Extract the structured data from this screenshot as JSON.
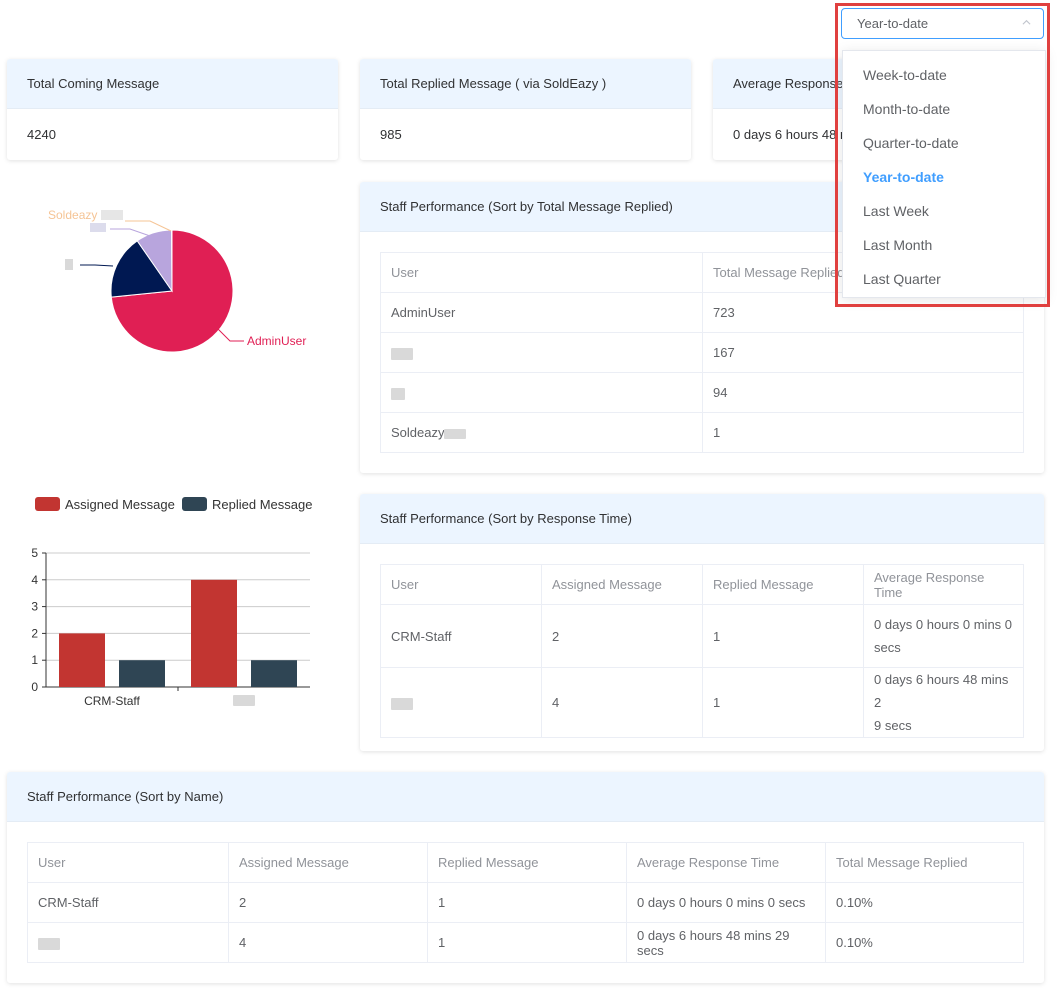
{
  "filter": {
    "selected": "Year-to-date",
    "options": [
      "Week-to-date",
      "Month-to-date",
      "Quarter-to-date",
      "Year-to-date",
      "Last Week",
      "Last Month",
      "Last Quarter"
    ]
  },
  "stats": [
    {
      "label": "Total Coming Message",
      "value": "4240"
    },
    {
      "label": "Total Replied Message ( via SoldEazy )",
      "value": "985"
    },
    {
      "label": "Average Response Time",
      "value": "0 days 6 hours 48 mins"
    }
  ],
  "pie": {
    "labels": {
      "soldeazy": "Soldeazy",
      "admin": "AdminUser"
    },
    "colors": {
      "admin": "#e01f54",
      "navy": "#001852",
      "lilac": "#b8a5dd",
      "soldeazy": "#f5c495"
    }
  },
  "chart_data": [
    {
      "type": "pie",
      "slices": [
        {
          "name": "AdminUser",
          "value": 723
        },
        {
          "name": "",
          "value": 167
        },
        {
          "name": "",
          "value": 94
        },
        {
          "name": "Soldeazy",
          "value": 1
        }
      ]
    },
    {
      "type": "bar",
      "categories": [
        "CRM-Staff",
        ""
      ],
      "series": [
        {
          "name": "Assigned Message",
          "values": [
            2,
            4
          ],
          "color": "#c23531"
        },
        {
          "name": "Replied Message",
          "values": [
            1,
            1
          ],
          "color": "#2f4554"
        }
      ],
      "ylim": [
        0,
        5
      ],
      "yticks": [
        "0",
        "1",
        "2",
        "3",
        "4",
        "5"
      ],
      "legend": "top",
      "grid": true
    }
  ],
  "perf_replied": {
    "title": "Staff Performance (Sort by Total Message Replied)",
    "headers": [
      "User",
      "Total Message Replied"
    ],
    "rows": [
      {
        "user": "AdminUser",
        "value": "723"
      },
      {
        "user": "",
        "value": "167"
      },
      {
        "user": "",
        "value": "94"
      },
      {
        "user": "Soldeazy",
        "value": "1"
      }
    ]
  },
  "perf_response": {
    "title": "Staff Performance (Sort by Response Time)",
    "headers": [
      "User",
      "Assigned Message",
      "Replied Message",
      "Average Response Time"
    ],
    "rows": [
      {
        "user": "CRM-Staff",
        "assigned": "2",
        "replied": "1",
        "time_line1": "0 days 0 hours 0 mins 0",
        "time_line2": "secs"
      },
      {
        "user": "",
        "assigned": "4",
        "replied": "1",
        "time_line1": "0 days 6 hours 48 mins 2",
        "time_line2": "9 secs"
      }
    ]
  },
  "perf_name": {
    "title": "Staff Performance (Sort by Name)",
    "headers": [
      "User",
      "Assigned Message",
      "Replied Message",
      "Average Response Time",
      "Total Message Replied"
    ],
    "rows": [
      {
        "user": "CRM-Staff",
        "assigned": "2",
        "replied": "1",
        "time": "0 days 0 hours 0 mins 0 secs",
        "pct": "0.10%"
      },
      {
        "user": "",
        "assigned": "4",
        "replied": "1",
        "time": "0 days 6 hours 48 mins 29 secs",
        "pct": "0.10%"
      }
    ]
  }
}
